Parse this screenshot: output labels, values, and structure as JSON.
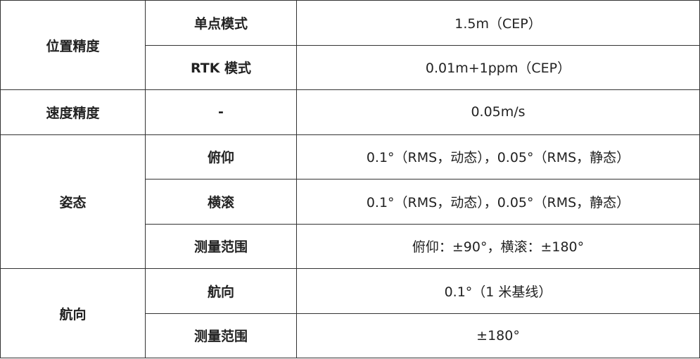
{
  "table": {
    "rows": [
      {
        "group": "位置精度",
        "items": [
          {
            "mode": "单点模式",
            "value": "1.5m（CEP）"
          },
          {
            "mode": "RTK 模式",
            "value": "0.01m+1ppm（CEP）"
          }
        ]
      },
      {
        "group": "速度精度",
        "items": [
          {
            "mode": "-",
            "value": "0.05m/s"
          }
        ]
      },
      {
        "group": "姿态",
        "items": [
          {
            "mode": "俯仰",
            "value": "0.1°（RMS，动态），0.05°（RMS，静态）"
          },
          {
            "mode": "横滚",
            "value": "0.1°（RMS，动态），0.05°（RMS，静态）"
          },
          {
            "mode": "测量范围",
            "value": "俯仰：±90°，横滚：±180°"
          }
        ]
      },
      {
        "group": "航向",
        "items": [
          {
            "mode": "航向",
            "value": "0.1°（1 米基线）"
          },
          {
            "mode": "测量范围",
            "value": "±180°"
          }
        ]
      }
    ]
  }
}
